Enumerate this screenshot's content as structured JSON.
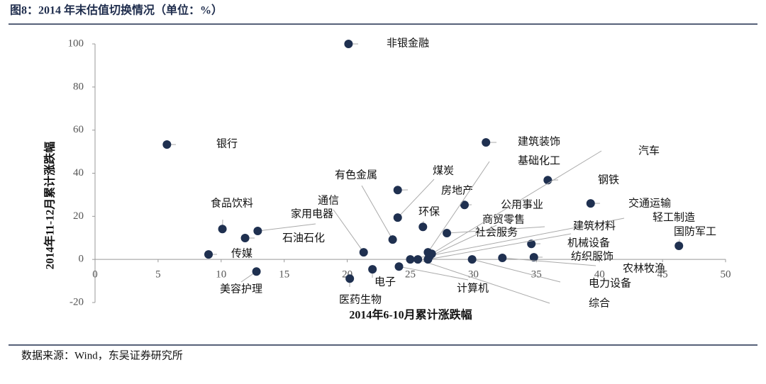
{
  "chart_data": {
    "type": "scatter",
    "title": "图8：2014 年末估值切换情况（单位：%）",
    "x_label": "2014年6-10月累计涨跌幅",
    "y_label": "2014年11-12月累计涨跌幅",
    "source": "数据来源：Wind，东吴证券研究所",
    "color": "#1f3050",
    "xlim": [
      0,
      50
    ],
    "xticks": [
      0,
      5,
      10,
      15,
      20,
      25,
      30,
      35,
      40,
      45,
      50
    ],
    "ylim": [
      -20,
      100
    ],
    "yticks": [
      -20,
      0,
      20,
      40,
      60,
      80,
      100
    ],
    "labels": [
      "非银金融",
      "银行",
      "建筑装饰",
      "钢铁",
      "交通运输",
      "煤炭",
      "有色金属",
      "房地产",
      "公用事业",
      "环保",
      "社会服务",
      "通信",
      "家用电器",
      "食品饮料",
      "石油石化",
      "传媒",
      "美容护理",
      "医药生物",
      "电子",
      "计算机",
      "国防军工",
      "机械设备",
      "纺织服饰",
      "农林牧渔",
      "电力设备",
      "轻工制造",
      "综合",
      "建筑材料",
      "商贸零售",
      "汽车",
      "基础化工"
    ],
    "x": [
      20.1,
      5.7,
      31.0,
      35.9,
      39.3,
      24.0,
      23.6,
      24.0,
      29.3,
      26.0,
      27.9,
      21.3,
      12.9,
      10.1,
      11.9,
      9.0,
      12.8,
      20.2,
      22.0,
      24.1,
      46.3,
      34.6,
      34.8,
      32.3,
      29.9,
      25.0,
      25.6,
      26.4,
      26.5,
      26.7,
      26.4
    ],
    "values": [
      100,
      53.3,
      54.3,
      36.8,
      26.0,
      19.4,
      9.2,
      32.2,
      25.3,
      15.1,
      12.2,
      3.3,
      13.2,
      14.1,
      9.9,
      2.3,
      -5.6,
      -8.9,
      -4.6,
      -3.3,
      6.3,
      7.2,
      1.0,
      0.7,
      0,
      0,
      0,
      0,
      1.3,
      2.6,
      3.3
    ]
  }
}
